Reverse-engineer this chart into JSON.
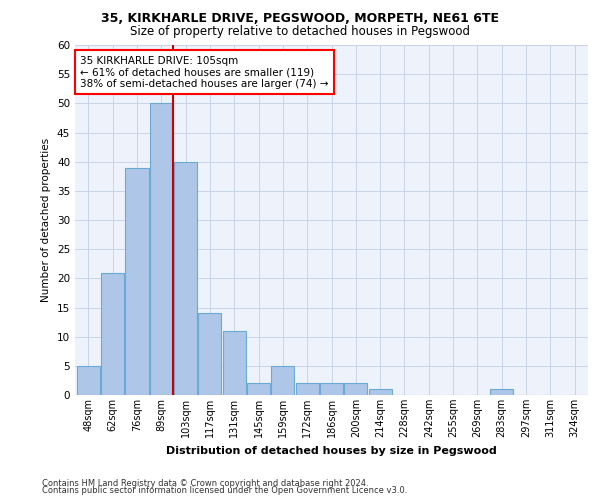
{
  "title1": "35, KIRKHARLE DRIVE, PEGSWOOD, MORPETH, NE61 6TE",
  "title2": "Size of property relative to detached houses in Pegswood",
  "xlabel": "Distribution of detached houses by size in Pegswood",
  "ylabel": "Number of detached properties",
  "bins": [
    "48sqm",
    "62sqm",
    "76sqm",
    "89sqm",
    "103sqm",
    "117sqm",
    "131sqm",
    "145sqm",
    "159sqm",
    "172sqm",
    "186sqm",
    "200sqm",
    "214sqm",
    "228sqm",
    "242sqm",
    "255sqm",
    "269sqm",
    "283sqm",
    "297sqm",
    "311sqm",
    "324sqm"
  ],
  "bar_heights": [
    5,
    21,
    39,
    50,
    40,
    14,
    11,
    2,
    5,
    2,
    2,
    2,
    1,
    0,
    0,
    0,
    0,
    1,
    0,
    0,
    0
  ],
  "bar_color": "#aec6e8",
  "bar_edge_color": "#6aaad4",
  "vline_color": "#cc0000",
  "annotation_text": "35 KIRKHARLE DRIVE: 105sqm\n← 61% of detached houses are smaller (119)\n38% of semi-detached houses are larger (74) →",
  "ylim": [
    0,
    60
  ],
  "yticks": [
    0,
    5,
    10,
    15,
    20,
    25,
    30,
    35,
    40,
    45,
    50,
    55,
    60
  ],
  "footnote1": "Contains HM Land Registry data © Crown copyright and database right 2024.",
  "footnote2": "Contains public sector information licensed under the Open Government Licence v3.0.",
  "bg_color": "#eef2fa",
  "grid_color": "#c8d4e8"
}
